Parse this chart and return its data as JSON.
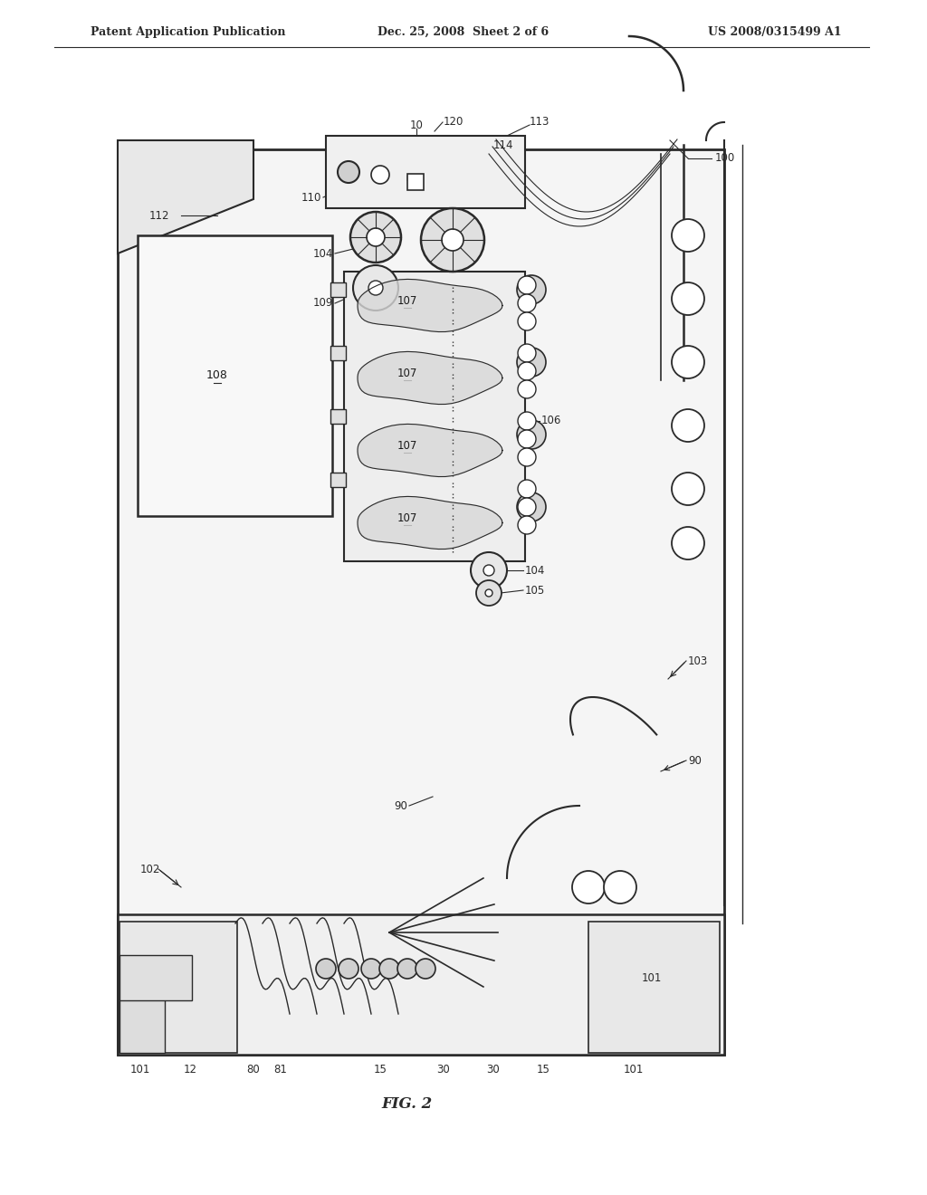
{
  "bg_color": "#ffffff",
  "header_left": "Patent Application Publication",
  "header_mid": "Dec. 25, 2008  Sheet 2 of 6",
  "header_right": "US 2008/0315499 A1",
  "caption": "FIG. 2",
  "line_color": "#2a2a2a",
  "label_color": "#1a1a1a",
  "font_size_header": 9,
  "font_size_labels": 8.5
}
